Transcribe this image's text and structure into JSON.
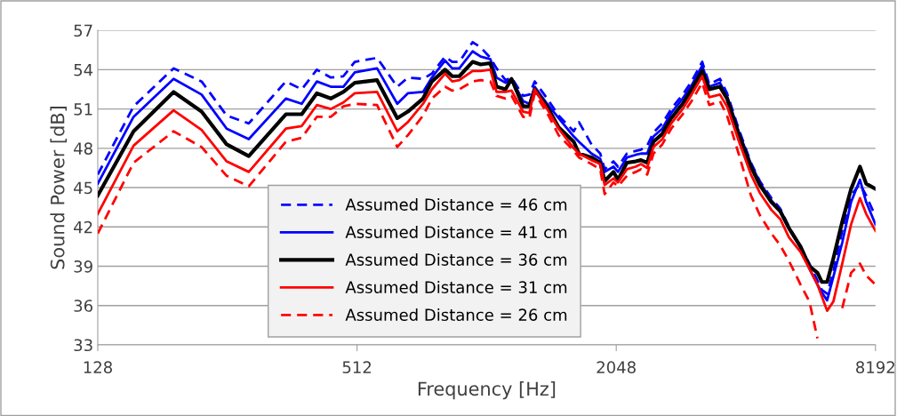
{
  "chart_data": {
    "type": "line",
    "xlabel": "Frequency [Hz]",
    "ylabel": "Sound Power [dB]",
    "log": "x",
    "xlim": [
      128,
      8192
    ],
    "xticks": [
      128,
      512,
      2048,
      8192
    ],
    "ylim": [
      33,
      57
    ],
    "yticks": [
      33,
      36,
      39,
      42,
      45,
      48,
      51,
      54,
      57
    ],
    "grid": "y",
    "legend": "bottom",
    "marker": "none",
    "x": [
      128,
      155,
      192,
      223,
      255,
      287,
      350,
      381,
      413,
      445,
      476,
      506,
      570,
      635,
      672,
      729,
      764,
      820,
      852,
      885,
      950,
      992,
      1045,
      1080,
      1133,
      1170,
      1245,
      1287,
      1324,
      1415,
      1505,
      1632,
      1678,
      1794,
      1880,
      1925,
      2018,
      2067,
      2168,
      2272,
      2338,
      2417,
      2499,
      2620,
      2748,
      2922,
      3064,
      3243,
      3368,
      3566,
      3704,
      3940,
      4209,
      4414,
      4695,
      4922,
      5159,
      5487,
      5755,
      6007,
      6149,
      6326,
      6540,
      6858,
      7191,
      7539,
      7794,
      8192
    ],
    "series": [
      {
        "name": "Assumed Distance = 46 cm",
        "color": "#0000ff",
        "line_style": "dashed",
        "values": [
          46.0,
          51.2,
          54.1,
          53.1,
          50.5,
          49.9,
          53.1,
          52.5,
          54.0,
          53.4,
          53.5,
          54.6,
          54.9,
          52.7,
          53.4,
          53.3,
          53.7,
          55.0,
          54.6,
          54.6,
          56.1,
          55.7,
          54.9,
          54.1,
          53.2,
          53.4,
          52.0,
          52.1,
          53.1,
          51.8,
          50.5,
          49.3,
          50.0,
          48.3,
          47.6,
          46.4,
          47.0,
          46.6,
          47.6,
          47.8,
          47.9,
          48.2,
          49.2,
          49.9,
          51.0,
          52.1,
          53.1,
          54.6,
          52.9,
          53.3,
          52.2,
          49.5,
          46.9,
          45.5,
          44.2,
          43.4,
          42.0,
          40.5,
          39.2,
          37.9,
          37.2,
          36.9,
          38.6,
          41.7,
          44.4,
          45.3,
          44.4,
          42.8
        ]
      },
      {
        "name": "Assumed Distance = 41 cm",
        "color": "#0000ff",
        "line_style": "solid",
        "values": [
          45.3,
          50.4,
          53.3,
          52.1,
          49.5,
          48.7,
          51.8,
          51.4,
          53.1,
          52.7,
          52.7,
          53.8,
          54.1,
          51.4,
          52.2,
          52.3,
          53.4,
          54.7,
          54.1,
          54.1,
          55.4,
          55.0,
          54.8,
          53.4,
          53.0,
          53.3,
          51.6,
          51.4,
          52.7,
          51.4,
          50.3,
          48.9,
          48.5,
          47.6,
          47.2,
          46.2,
          46.6,
          46.2,
          47.3,
          47.5,
          47.6,
          47.6,
          48.9,
          49.5,
          50.7,
          51.8,
          52.8,
          54.3,
          52.7,
          53.0,
          52.0,
          49.3,
          46.8,
          45.4,
          44.0,
          43.3,
          41.9,
          40.4,
          38.8,
          37.6,
          37.0,
          36.4,
          38.2,
          40.8,
          43.9,
          45.6,
          43.9,
          42.2
        ]
      },
      {
        "name": "Assumed Distance = 36 cm",
        "color": "#000000",
        "line_style": "solid",
        "values": [
          44.4,
          49.3,
          52.3,
          50.8,
          48.3,
          47.4,
          50.6,
          50.6,
          52.2,
          51.8,
          52.3,
          53.0,
          53.2,
          50.3,
          50.8,
          51.8,
          53.1,
          54.0,
          53.5,
          53.5,
          54.6,
          54.4,
          54.5,
          52.7,
          52.5,
          53.3,
          51.2,
          51.2,
          52.5,
          51.2,
          49.6,
          48.5,
          47.6,
          47.3,
          46.9,
          45.5,
          46.2,
          45.6,
          46.9,
          47.0,
          47.1,
          46.9,
          48.5,
          49.1,
          50.3,
          51.4,
          52.5,
          53.9,
          52.5,
          52.7,
          51.8,
          49.1,
          46.6,
          45.2,
          43.9,
          43.2,
          41.9,
          40.5,
          39.0,
          38.5,
          37.8,
          37.8,
          39.6,
          42.4,
          44.9,
          46.6,
          45.3,
          44.9
        ]
      },
      {
        "name": "Assumed Distance = 31 cm",
        "color": "#ff0000",
        "line_style": "solid",
        "values": [
          43.0,
          48.2,
          50.9,
          49.4,
          47.0,
          46.2,
          49.5,
          49.7,
          51.3,
          51.0,
          51.5,
          52.2,
          52.3,
          49.3,
          50.0,
          51.4,
          52.5,
          53.7,
          53.1,
          53.2,
          53.9,
          53.9,
          54.0,
          52.3,
          52.3,
          52.4,
          50.8,
          50.7,
          52.5,
          51.0,
          49.5,
          48.0,
          47.6,
          47.1,
          46.8,
          45.2,
          45.7,
          45.4,
          46.4,
          46.6,
          46.8,
          46.5,
          48.1,
          48.7,
          49.9,
          51.0,
          52.1,
          53.5,
          51.9,
          52.1,
          51.2,
          48.6,
          46.0,
          44.6,
          43.3,
          42.6,
          41.2,
          40.1,
          38.8,
          37.6,
          36.7,
          35.6,
          36.3,
          39.2,
          42.2,
          44.2,
          43.0,
          41.7
        ]
      },
      {
        "name": "Assumed Distance = 26 cm",
        "color": "#ff0000",
        "line_style": "dashed",
        "values": [
          41.5,
          46.9,
          49.3,
          48.1,
          45.9,
          45.1,
          48.5,
          48.8,
          50.4,
          50.4,
          51.2,
          51.4,
          51.3,
          48.1,
          49.0,
          50.5,
          51.8,
          52.7,
          52.4,
          52.5,
          53.1,
          53.2,
          53.1,
          52.0,
          51.8,
          52.0,
          50.4,
          50.3,
          52.2,
          50.7,
          49.0,
          47.8,
          47.3,
          46.8,
          46.4,
          44.5,
          45.4,
          45.1,
          45.9,
          46.2,
          46.4,
          46.0,
          47.6,
          48.3,
          49.5,
          50.6,
          51.6,
          53.0,
          51.3,
          51.6,
          50.5,
          47.6,
          44.4,
          42.9,
          41.5,
          40.6,
          39.4,
          37.6,
          36.3,
          33.5,
          null,
          null,
          null,
          35.8,
          38.5,
          39.2,
          38.3,
          37.6
        ]
      }
    ]
  }
}
